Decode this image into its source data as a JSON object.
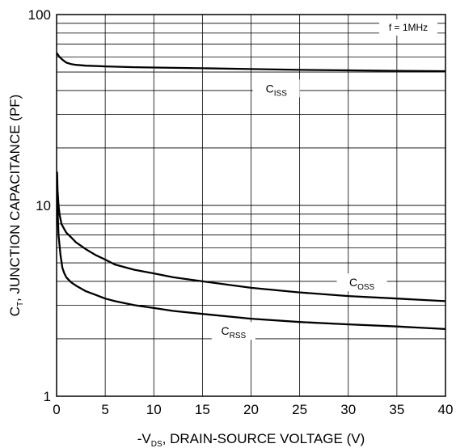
{
  "chart_data": {
    "type": "line",
    "title": "",
    "xlabel": {
      "prefix": "-V",
      "sub": "DS",
      "suffix": ", DRAIN-SOURCE VOLTAGE (V)"
    },
    "ylabel": {
      "prefix": "C",
      "sub": "T",
      "suffix": ", JUNCTION CAPACITANCE (PF)"
    },
    "xlim": [
      0,
      40
    ],
    "ylim": [
      1,
      100
    ],
    "y_scale": "log",
    "grid": true,
    "x_ticks": [
      0,
      5,
      10,
      15,
      20,
      25,
      30,
      35,
      40
    ],
    "x_tick_labels": [
      "0",
      "5",
      "10",
      "15",
      "20",
      "25",
      "30",
      "35",
      "40"
    ],
    "y_ticks": [
      1,
      10,
      100
    ],
    "y_tick_labels": [
      "1",
      "10",
      "100"
    ],
    "annotations": [
      {
        "text": "f = 1MHz"
      }
    ],
    "series": [
      {
        "name": "ISS",
        "label": {
          "main": "C",
          "sub": "ISS"
        },
        "color": "#000000",
        "x": [
          0,
          0.3,
          0.6,
          1,
          1.5,
          2,
          3,
          5,
          8,
          10,
          15,
          20,
          25,
          30,
          35,
          40
        ],
        "y": [
          63,
          60,
          58,
          56,
          55,
          54.5,
          54,
          53.5,
          53,
          52.8,
          52.3,
          51.8,
          51.3,
          51,
          50.7,
          50.5
        ]
      },
      {
        "name": "OSS",
        "label": {
          "main": "C",
          "sub": "OSS"
        },
        "color": "#000000",
        "x": [
          0.05,
          0.1,
          0.2,
          0.3,
          0.5,
          0.8,
          1,
          1.5,
          2,
          3,
          4,
          5,
          6,
          8,
          10,
          12,
          15,
          20,
          25,
          30,
          35,
          40
        ],
        "y": [
          15,
          12,
          10,
          9,
          8,
          7.5,
          7.2,
          6.8,
          6.4,
          5.9,
          5.5,
          5.2,
          4.9,
          4.6,
          4.4,
          4.2,
          4.0,
          3.7,
          3.5,
          3.35,
          3.25,
          3.15
        ]
      },
      {
        "name": "RSS",
        "label": {
          "main": "C",
          "sub": "RSS"
        },
        "color": "#000000",
        "x": [
          0.05,
          0.2,
          0.4,
          0.6,
          0.8,
          1,
          1.5,
          2,
          3,
          4,
          5,
          6,
          8,
          10,
          12,
          15,
          20,
          25,
          30,
          35,
          40
        ],
        "y": [
          11,
          7,
          5.5,
          4.7,
          4.4,
          4.2,
          3.95,
          3.8,
          3.55,
          3.4,
          3.25,
          3.15,
          3.0,
          2.9,
          2.8,
          2.7,
          2.55,
          2.45,
          2.38,
          2.32,
          2.25
        ]
      }
    ]
  }
}
